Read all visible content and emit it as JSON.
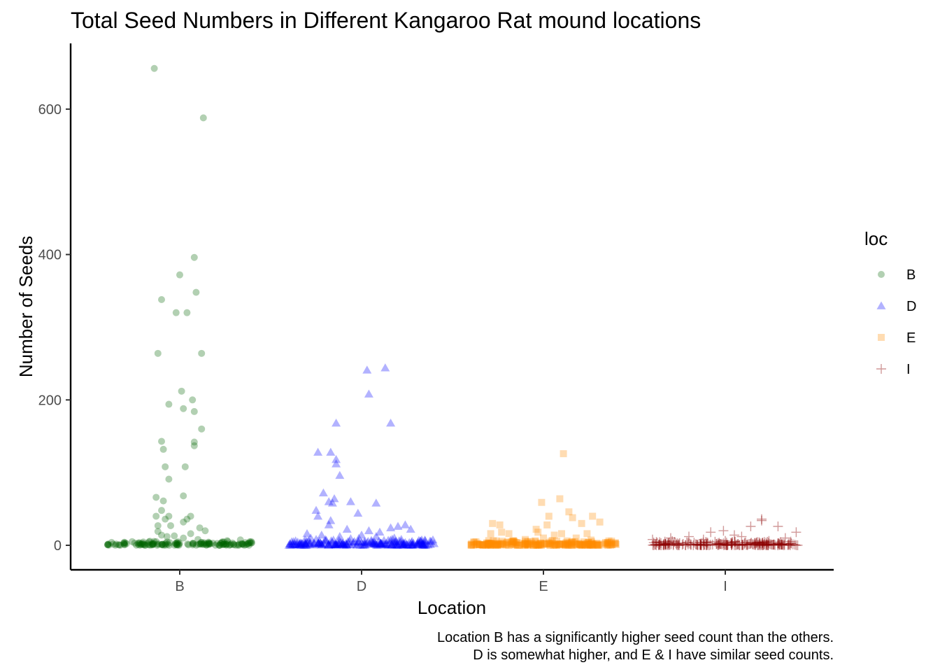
{
  "chart_data": {
    "type": "scatter",
    "title": "Total Seed Numbers in Different Kangaroo Rat mound locations",
    "xlabel": "Location",
    "ylabel": "Number of Seeds",
    "categories": [
      "B",
      "D",
      "E",
      "I"
    ],
    "ylim": [
      -33,
      690
    ],
    "yticks": [
      0,
      200,
      400,
      600
    ],
    "ytick_labels": [
      "0",
      "200",
      "400",
      "600"
    ],
    "grid": false,
    "legend": {
      "title": "loc",
      "placement": "right",
      "entries": [
        {
          "label": "B",
          "shape": "circle",
          "color": "#006400"
        },
        {
          "label": "D",
          "shape": "triangle",
          "color": "#0000FF"
        },
        {
          "label": "E",
          "shape": "square",
          "color": "#FF8C00"
        },
        {
          "label": "I",
          "shape": "plus",
          "color": "#8B0000"
        }
      ]
    },
    "caption": [
      "Location B has a significantly higher seed count than the others.",
      "D is somewhat higher, and E & I have similar seed counts."
    ],
    "series": [
      {
        "name": "B",
        "color": "#006400",
        "shape": "circle",
        "opacity": 0.3,
        "points": [
          [
            -0.14,
            656
          ],
          [
            0.13,
            588
          ],
          [
            0.08,
            396
          ],
          [
            0.0,
            372
          ],
          [
            -0.1,
            338
          ],
          [
            0.09,
            348
          ],
          [
            0.04,
            320
          ],
          [
            -0.02,
            320
          ],
          [
            -0.12,
            264
          ],
          [
            0.12,
            264
          ],
          [
            0.07,
            200
          ],
          [
            0.01,
            212
          ],
          [
            0.02,
            188
          ],
          [
            0.08,
            184
          ],
          [
            0.12,
            160
          ],
          [
            -0.06,
            194
          ],
          [
            -0.1,
            143
          ],
          [
            -0.09,
            132
          ],
          [
            0.08,
            142
          ],
          [
            0.08,
            137
          ],
          [
            -0.08,
            108
          ],
          [
            0.03,
            108
          ],
          [
            -0.06,
            91
          ],
          [
            -0.13,
            66
          ],
          [
            -0.09,
            61
          ],
          [
            0.02,
            68
          ],
          [
            -0.13,
            40
          ],
          [
            -0.08,
            36
          ],
          [
            -0.06,
            40
          ],
          [
            0.06,
            40
          ],
          [
            -0.12,
            27
          ],
          [
            -0.1,
            48
          ],
          [
            -0.05,
            27
          ],
          [
            0.02,
            32
          ],
          [
            0.04,
            36
          ],
          [
            0.11,
            24
          ],
          [
            0.14,
            20
          ],
          [
            -0.12,
            19
          ],
          [
            -0.1,
            14
          ],
          [
            -0.07,
            12
          ],
          [
            -0.03,
            13
          ],
          [
            0.02,
            10
          ],
          [
            0.06,
            16
          ],
          [
            0.1,
            8
          ],
          [
            -0.13,
            5
          ],
          [
            0.12,
            4
          ]
        ],
        "baseline": {
          "count": 150,
          "min": 0,
          "max": 8
        }
      },
      {
        "name": "D",
        "color": "#0000FF",
        "shape": "triangle",
        "opacity": 0.3,
        "points": [
          [
            0.13,
            244
          ],
          [
            0.03,
            241
          ],
          [
            0.04,
            208
          ],
          [
            0.16,
            168
          ],
          [
            -0.14,
            168
          ],
          [
            -0.17,
            128
          ],
          [
            -0.24,
            128
          ],
          [
            -0.14,
            118
          ],
          [
            -0.14,
            112
          ],
          [
            -0.12,
            96
          ],
          [
            -0.21,
            72
          ],
          [
            -0.15,
            64
          ],
          [
            -0.18,
            60
          ],
          [
            -0.16,
            58
          ],
          [
            -0.25,
            48
          ],
          [
            -0.24,
            40
          ],
          [
            -0.06,
            60
          ],
          [
            0.08,
            58
          ],
          [
            -0.02,
            44
          ],
          [
            0.16,
            24
          ],
          [
            -0.17,
            34
          ],
          [
            -0.18,
            28
          ],
          [
            -0.22,
            14
          ],
          [
            -0.08,
            22
          ],
          [
            0.04,
            20
          ],
          [
            0.1,
            18
          ],
          [
            0.2,
            26
          ],
          [
            0.24,
            28
          ],
          [
            0.27,
            22
          ],
          [
            -0.3,
            16
          ],
          [
            -0.28,
            10
          ],
          [
            -0.25,
            8
          ],
          [
            -0.12,
            12
          ],
          [
            -0.06,
            9
          ],
          [
            0.0,
            14
          ],
          [
            0.08,
            12
          ],
          [
            0.18,
            10
          ]
        ],
        "baseline": {
          "count": 200,
          "min": 0,
          "max": 10
        }
      },
      {
        "name": "E",
        "color": "#FF8C00",
        "shape": "square",
        "opacity": 0.3,
        "points": [
          [
            0.11,
            126
          ],
          [
            0.09,
            64
          ],
          [
            -0.01,
            59
          ],
          [
            0.14,
            46
          ],
          [
            0.03,
            40
          ],
          [
            0.27,
            40
          ],
          [
            0.16,
            38
          ],
          [
            0.21,
            30
          ],
          [
            0.24,
            16
          ],
          [
            0.31,
            32
          ],
          [
            -0.28,
            30
          ],
          [
            -0.24,
            28
          ],
          [
            -0.23,
            18
          ],
          [
            -0.29,
            16
          ],
          [
            0.02,
            28
          ],
          [
            -0.19,
            16
          ],
          [
            -0.04,
            22
          ],
          [
            -0.03,
            18
          ],
          [
            0.06,
            14
          ],
          [
            0.1,
            16
          ],
          [
            0.18,
            10
          ],
          [
            0.0,
            10
          ],
          [
            -0.1,
            8
          ],
          [
            -0.26,
            6
          ],
          [
            0.13,
            6
          ],
          [
            0.36,
            6
          ]
        ],
        "baseline": {
          "count": 220,
          "min": 0,
          "max": 8
        }
      },
      {
        "name": "I",
        "color": "#8B0000",
        "shape": "plus",
        "opacity": 0.3,
        "points": [
          [
            0.2,
            36
          ],
          [
            0.2,
            34
          ],
          [
            0.14,
            26
          ],
          [
            0.39,
            18
          ],
          [
            0.29,
            26
          ],
          [
            -0.01,
            20
          ],
          [
            -0.08,
            18
          ],
          [
            -0.2,
            12
          ],
          [
            0.05,
            14
          ],
          [
            0.09,
            12
          ],
          [
            -0.3,
            10
          ],
          [
            -0.4,
            8
          ],
          [
            0.33,
            10
          ],
          [
            -0.12,
            8
          ],
          [
            0.0,
            6
          ],
          [
            0.24,
            6
          ]
        ],
        "baseline": {
          "count": 220,
          "min": 0,
          "max": 6
        }
      }
    ]
  }
}
